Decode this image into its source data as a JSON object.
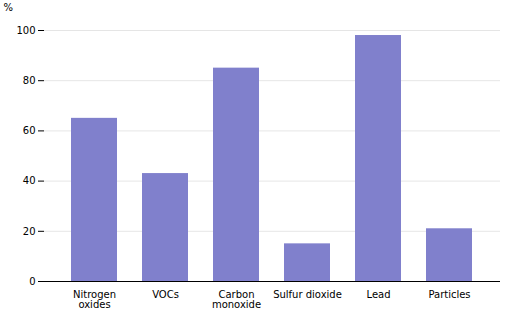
{
  "chart_data": {
    "type": "bar",
    "categories": [
      "Nitrogen\noxides",
      "VOCs",
      "Carbon\nmonoxide",
      "Sulfur dioxide",
      "Lead",
      "Particles"
    ],
    "values": [
      65,
      43,
      85,
      15,
      98,
      21
    ],
    "color": "#8080cc",
    "ylabel": "%",
    "ylim": [
      0,
      100
    ],
    "yticks": [
      0,
      20,
      40,
      60,
      80,
      100
    ],
    "grid": true
  }
}
